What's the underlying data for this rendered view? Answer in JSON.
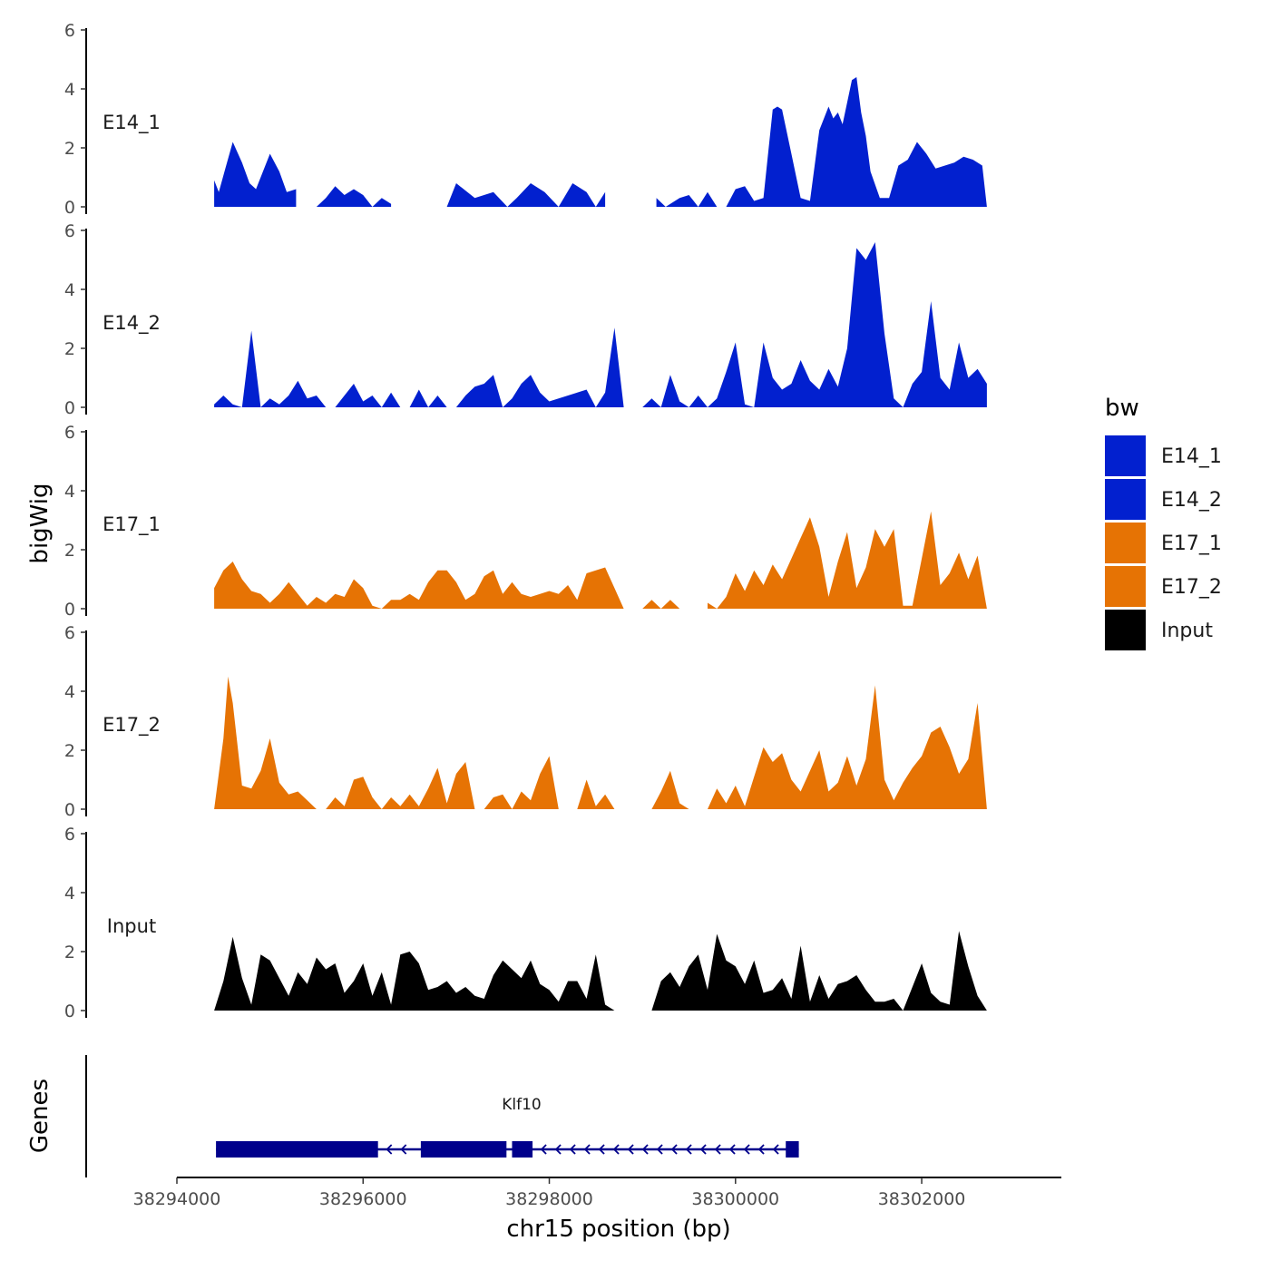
{
  "chart_data": {
    "type": "area",
    "title": "",
    "chromosome": "chr15",
    "xlabel": "chr15 position (bp)",
    "ylabel": "bigWig",
    "genes_axis_label": "Genes",
    "xlim": [
      38294000,
      38303500
    ],
    "x_ticks": [
      38294000,
      38296000,
      38298000,
      38300000,
      38302000
    ],
    "x_tick_labels": [
      "38294000",
      "38296000",
      "38298000",
      "38300000",
      "38302000"
    ],
    "ylim": [
      0,
      6
    ],
    "y_ticks": [
      0,
      2,
      4,
      6
    ],
    "y_tick_labels": [
      "0",
      "2",
      "4",
      "6"
    ],
    "legend": {
      "title": "bw",
      "entries": [
        {
          "label": "E14_1",
          "color": "#0220CF"
        },
        {
          "label": "E14_2",
          "color": "#0220CF"
        },
        {
          "label": "E17_1",
          "color": "#E67304"
        },
        {
          "label": "E17_2",
          "color": "#E67304"
        },
        {
          "label": "Input",
          "color": "#000000"
        }
      ]
    },
    "series": [
      {
        "name": "E14_1",
        "color": "#0220CF",
        "x": [
          38294400,
          38294450,
          38294520,
          38294600,
          38294700,
          38294780,
          38294850,
          38295000,
          38295100,
          38295180,
          38295280,
          38295400,
          38295500,
          38295600,
          38295700,
          38295800,
          38295900,
          38296000,
          38296100,
          38296200,
          38296300,
          38296500,
          38296700,
          38296900,
          38297000,
          38297200,
          38297400,
          38297550,
          38297650,
          38297800,
          38297950,
          38298100,
          38298250,
          38298400,
          38298500,
          38298600,
          38298700,
          38298800,
          38298900,
          38299000,
          38299150,
          38299250,
          38299400,
          38299500,
          38299600,
          38299700,
          38299800,
          38299900,
          38300000,
          38300100,
          38300200,
          38300300,
          38300400,
          38300450,
          38300500,
          38300600,
          38300700,
          38300800,
          38300900,
          38301000,
          38301050,
          38301100,
          38301150,
          38301250,
          38301300,
          38301350,
          38301400,
          38301450,
          38301550,
          38301650,
          38301750,
          38301850,
          38301950,
          38302050,
          38302150,
          38302250,
          38302350,
          38302450,
          38302550,
          38302650,
          38302700
        ],
        "values": [
          0.9,
          0.5,
          1.3,
          2.2,
          1.5,
          0.8,
          0.6,
          1.8,
          1.2,
          0.5,
          0.6,
          0.0,
          0.0,
          0.3,
          0.7,
          0.4,
          0.6,
          0.4,
          0.0,
          0.3,
          0.1,
          0.2,
          0.0,
          0.0,
          0.8,
          0.3,
          0.5,
          0.0,
          0.3,
          0.8,
          0.5,
          0.0,
          0.8,
          0.5,
          0.0,
          0.5,
          0.0,
          0.4,
          0.0,
          0.0,
          0.3,
          0.0,
          0.3,
          0.4,
          0.0,
          0.5,
          0.0,
          0.0,
          0.6,
          0.7,
          0.2,
          0.3,
          3.3,
          3.4,
          3.3,
          1.8,
          0.3,
          0.2,
          2.6,
          3.4,
          3.0,
          3.2,
          2.8,
          4.3,
          4.4,
          3.2,
          2.4,
          1.2,
          0.3,
          0.3,
          1.4,
          1.6,
          2.2,
          1.8,
          1.3,
          1.4,
          1.5,
          1.7,
          1.6,
          1.4,
          0.0
        ],
        "gaps": [
          [
            38295300,
            38295500
          ],
          [
            38296450,
            38296550
          ],
          [
            38298600,
            38299050
          ],
          [
            38299600,
            38299700
          ]
        ]
      },
      {
        "name": "E14_2",
        "color": "#0220CF",
        "x": [
          38294400,
          38294500,
          38294600,
          38294700,
          38294800,
          38294900,
          38295000,
          38295100,
          38295200,
          38295300,
          38295400,
          38295500,
          38295600,
          38295700,
          38295800,
          38295900,
          38296000,
          38296100,
          38296200,
          38296300,
          38296400,
          38296500,
          38296600,
          38296700,
          38296800,
          38296900,
          38297000,
          38297100,
          38297200,
          38297300,
          38297400,
          38297500,
          38297600,
          38297700,
          38297800,
          38297900,
          38298000,
          38298100,
          38298200,
          38298300,
          38298400,
          38298500,
          38298600,
          38298700,
          38298800,
          38298900,
          38299000,
          38299100,
          38299200,
          38299300,
          38299400,
          38299500,
          38299600,
          38299700,
          38299800,
          38299900,
          38300000,
          38300100,
          38300200,
          38300300,
          38300400,
          38300500,
          38300600,
          38300700,
          38300800,
          38300900,
          38301000,
          38301100,
          38301200,
          38301300,
          38301400,
          38301500,
          38301600,
          38301700,
          38301800,
          38301900,
          38302000,
          38302100,
          38302200,
          38302300,
          38302400,
          38302500,
          38302600,
          38302700
        ],
        "values": [
          0.1,
          0.4,
          0.1,
          0.0,
          2.6,
          0.0,
          0.3,
          0.1,
          0.4,
          0.9,
          0.3,
          0.4,
          0.0,
          0.0,
          0.4,
          0.8,
          0.2,
          0.4,
          0.0,
          0.5,
          0.0,
          0.0,
          0.6,
          0.0,
          0.4,
          0.0,
          0.0,
          0.4,
          0.7,
          0.8,
          1.1,
          0.0,
          0.3,
          0.8,
          1.1,
          0.5,
          0.2,
          0.3,
          0.4,
          0.5,
          0.6,
          0.0,
          0.5,
          2.7,
          0.0,
          0.0,
          0.0,
          0.3,
          0.0,
          1.1,
          0.2,
          0.0,
          0.4,
          0.0,
          0.3,
          1.2,
          2.2,
          0.1,
          0.0,
          2.2,
          1.0,
          0.6,
          0.8,
          1.6,
          0.9,
          0.6,
          1.3,
          0.7,
          2.0,
          5.4,
          5.0,
          5.6,
          2.5,
          0.3,
          0.0,
          0.8,
          1.2,
          3.6,
          1.0,
          0.6,
          2.2,
          1.0,
          1.3,
          0.8
        ],
        "gaps": [
          [
            38295700,
            38295800
          ],
          [
            38296600,
            38296650
          ],
          [
            38298900,
            38298950
          ],
          [
            38300000,
            38300100
          ],
          [
            38301800,
            38301850
          ]
        ]
      },
      {
        "name": "E17_1",
        "color": "#E67304",
        "x": [
          38294400,
          38294500,
          38294600,
          38294700,
          38294800,
          38294900,
          38295000,
          38295100,
          38295200,
          38295300,
          38295400,
          38295500,
          38295600,
          38295700,
          38295800,
          38295900,
          38296000,
          38296100,
          38296200,
          38296300,
          38296400,
          38296500,
          38296600,
          38296700,
          38296800,
          38296900,
          38297000,
          38297100,
          38297200,
          38297300,
          38297400,
          38297500,
          38297600,
          38297700,
          38297800,
          38297900,
          38298000,
          38298100,
          38298200,
          38298300,
          38298400,
          38298500,
          38298600,
          38298700,
          38298800,
          38298900,
          38299000,
          38299100,
          38299200,
          38299300,
          38299400,
          38299500,
          38299600,
          38299700,
          38299800,
          38299900,
          38300000,
          38300100,
          38300200,
          38300300,
          38300400,
          38300500,
          38300600,
          38300700,
          38300800,
          38300900,
          38301000,
          38301100,
          38301200,
          38301300,
          38301400,
          38301500,
          38301600,
          38301700,
          38301800,
          38301900,
          38302000,
          38302100,
          38302200,
          38302300,
          38302400,
          38302500,
          38302600,
          38302700
        ],
        "values": [
          0.7,
          1.3,
          1.6,
          1.0,
          0.6,
          0.5,
          0.2,
          0.5,
          0.9,
          0.5,
          0.1,
          0.4,
          0.2,
          0.5,
          0.4,
          1.0,
          0.7,
          0.1,
          0.0,
          0.3,
          0.3,
          0.5,
          0.3,
          0.9,
          1.3,
          1.3,
          0.9,
          0.3,
          0.5,
          1.1,
          1.3,
          0.5,
          0.9,
          0.5,
          0.4,
          0.5,
          0.6,
          0.5,
          0.8,
          0.3,
          1.2,
          1.3,
          1.4,
          0.7,
          0.0,
          0.0,
          0.0,
          0.3,
          0.0,
          0.3,
          0.0,
          0.0,
          0.0,
          0.2,
          0.0,
          0.4,
          1.2,
          0.6,
          1.3,
          0.8,
          1.5,
          1.0,
          1.7,
          2.4,
          3.1,
          2.1,
          0.4,
          1.6,
          2.6,
          0.7,
          1.4,
          2.7,
          2.1,
          2.7,
          0.1,
          0.1,
          1.7,
          3.3,
          0.8,
          1.2,
          1.9,
          1.0,
          1.8,
          0.0
        ],
        "gaps": [
          [
            38296000,
            38296100
          ],
          [
            38298800,
            38298950
          ],
          [
            38299500,
            38299650
          ]
        ]
      },
      {
        "name": "E17_2",
        "color": "#E67304",
        "x": [
          38294400,
          38294450,
          38294500,
          38294550,
          38294600,
          38294700,
          38294800,
          38294900,
          38295000,
          38295100,
          38295200,
          38295300,
          38295400,
          38295500,
          38295600,
          38295700,
          38295800,
          38295900,
          38296000,
          38296100,
          38296200,
          38296300,
          38296400,
          38296500,
          38296600,
          38296700,
          38296800,
          38296900,
          38297000,
          38297100,
          38297200,
          38297300,
          38297400,
          38297500,
          38297600,
          38297700,
          38297800,
          38297900,
          38298000,
          38298100,
          38298200,
          38298300,
          38298400,
          38298500,
          38298600,
          38298700,
          38298800,
          38298900,
          38299000,
          38299100,
          38299200,
          38299300,
          38299400,
          38299500,
          38299600,
          38299700,
          38299800,
          38299900,
          38300000,
          38300100,
          38300200,
          38300300,
          38300400,
          38300500,
          38300600,
          38300700,
          38300800,
          38300900,
          38301000,
          38301100,
          38301200,
          38301300,
          38301400,
          38301500,
          38301600,
          38301700,
          38301800,
          38301900,
          38302000,
          38302100,
          38302200,
          38302300,
          38302400,
          38302500,
          38302600,
          38302700
        ],
        "values": [
          0.0,
          1.2,
          2.4,
          4.5,
          3.6,
          0.8,
          0.7,
          1.3,
          2.4,
          0.9,
          0.5,
          0.6,
          0.3,
          0.0,
          0.0,
          0.4,
          0.1,
          1.0,
          1.1,
          0.4,
          0.0,
          0.4,
          0.1,
          0.5,
          0.1,
          0.7,
          1.4,
          0.2,
          1.2,
          1.6,
          0.0,
          0.0,
          0.4,
          0.5,
          0.0,
          0.6,
          0.3,
          1.2,
          1.8,
          0.0,
          0.0,
          0.0,
          1.0,
          0.1,
          0.5,
          0.0,
          0.0,
          0.0,
          0.0,
          0.0,
          0.6,
          1.3,
          0.2,
          0.0,
          0.0,
          0.0,
          0.7,
          0.2,
          0.8,
          0.1,
          1.1,
          2.1,
          1.6,
          1.9,
          1.0,
          0.6,
          1.3,
          2.0,
          0.6,
          0.9,
          1.8,
          0.8,
          1.7,
          4.2,
          1.0,
          0.3,
          0.9,
          1.4,
          1.8,
          2.6,
          2.8,
          2.1,
          1.2,
          1.7,
          3.6,
          0.0
        ],
        "gaps": [
          [
            38296800,
            38296850
          ],
          [
            38298400,
            38298450
          ],
          [
            38298750,
            38299050
          ],
          [
            38299550,
            38299700
          ]
        ]
      },
      {
        "name": "Input",
        "color": "#000000",
        "x": [
          38294400,
          38294500,
          38294600,
          38294700,
          38294800,
          38294900,
          38295000,
          38295100,
          38295200,
          38295300,
          38295400,
          38295500,
          38295600,
          38295700,
          38295800,
          38295900,
          38296000,
          38296100,
          38296200,
          38296300,
          38296400,
          38296500,
          38296600,
          38296700,
          38296800,
          38296900,
          38297000,
          38297100,
          38297200,
          38297300,
          38297400,
          38297500,
          38297600,
          38297700,
          38297800,
          38297900,
          38298000,
          38298100,
          38298200,
          38298300,
          38298400,
          38298500,
          38298600,
          38298700,
          38298800,
          38298900,
          38299000,
          38299100,
          38299200,
          38299300,
          38299400,
          38299500,
          38299600,
          38299700,
          38299800,
          38299900,
          38300000,
          38300100,
          38300200,
          38300300,
          38300400,
          38300500,
          38300600,
          38300700,
          38300800,
          38300900,
          38301000,
          38301100,
          38301200,
          38301300,
          38301400,
          38301500,
          38301600,
          38301700,
          38301800,
          38301900,
          38302000,
          38302100,
          38302200,
          38302300,
          38302400,
          38302500,
          38302600,
          38302700
        ],
        "values": [
          0.0,
          1.0,
          2.5,
          1.1,
          0.2,
          1.9,
          1.7,
          1.1,
          0.5,
          1.3,
          0.9,
          1.8,
          1.4,
          1.6,
          0.6,
          1.0,
          1.6,
          0.5,
          1.3,
          0.2,
          1.9,
          2.0,
          1.6,
          0.7,
          0.8,
          1.0,
          0.6,
          0.8,
          0.5,
          0.4,
          1.2,
          1.7,
          1.4,
          1.1,
          1.7,
          0.9,
          0.7,
          0.3,
          1.0,
          1.0,
          0.4,
          1.9,
          0.2,
          0.0,
          0.0,
          1.1,
          0.0,
          0.0,
          1.0,
          1.3,
          0.8,
          1.5,
          1.9,
          0.7,
          2.6,
          1.7,
          1.5,
          0.9,
          1.7,
          0.6,
          0.7,
          1.1,
          0.4,
          2.2,
          0.3,
          1.2,
          0.4,
          0.9,
          1.0,
          1.2,
          0.7,
          0.3,
          0.3,
          0.4,
          0.0,
          0.8,
          1.6,
          0.6,
          0.3,
          0.2,
          2.7,
          1.5,
          0.5,
          0.0
        ],
        "gaps": [
          [
            38298850,
            38299050
          ],
          [
            38299300,
            38299400
          ]
        ]
      }
    ],
    "genes": [
      {
        "name": "Klf10",
        "strand": "-",
        "color": "#00008B",
        "start": 38294420,
        "end": 38300680,
        "exons": [
          [
            38294420,
            38296160
          ],
          [
            38296620,
            38297540
          ],
          [
            38297600,
            38297820
          ],
          [
            38300540,
            38300680
          ]
        ]
      }
    ]
  }
}
